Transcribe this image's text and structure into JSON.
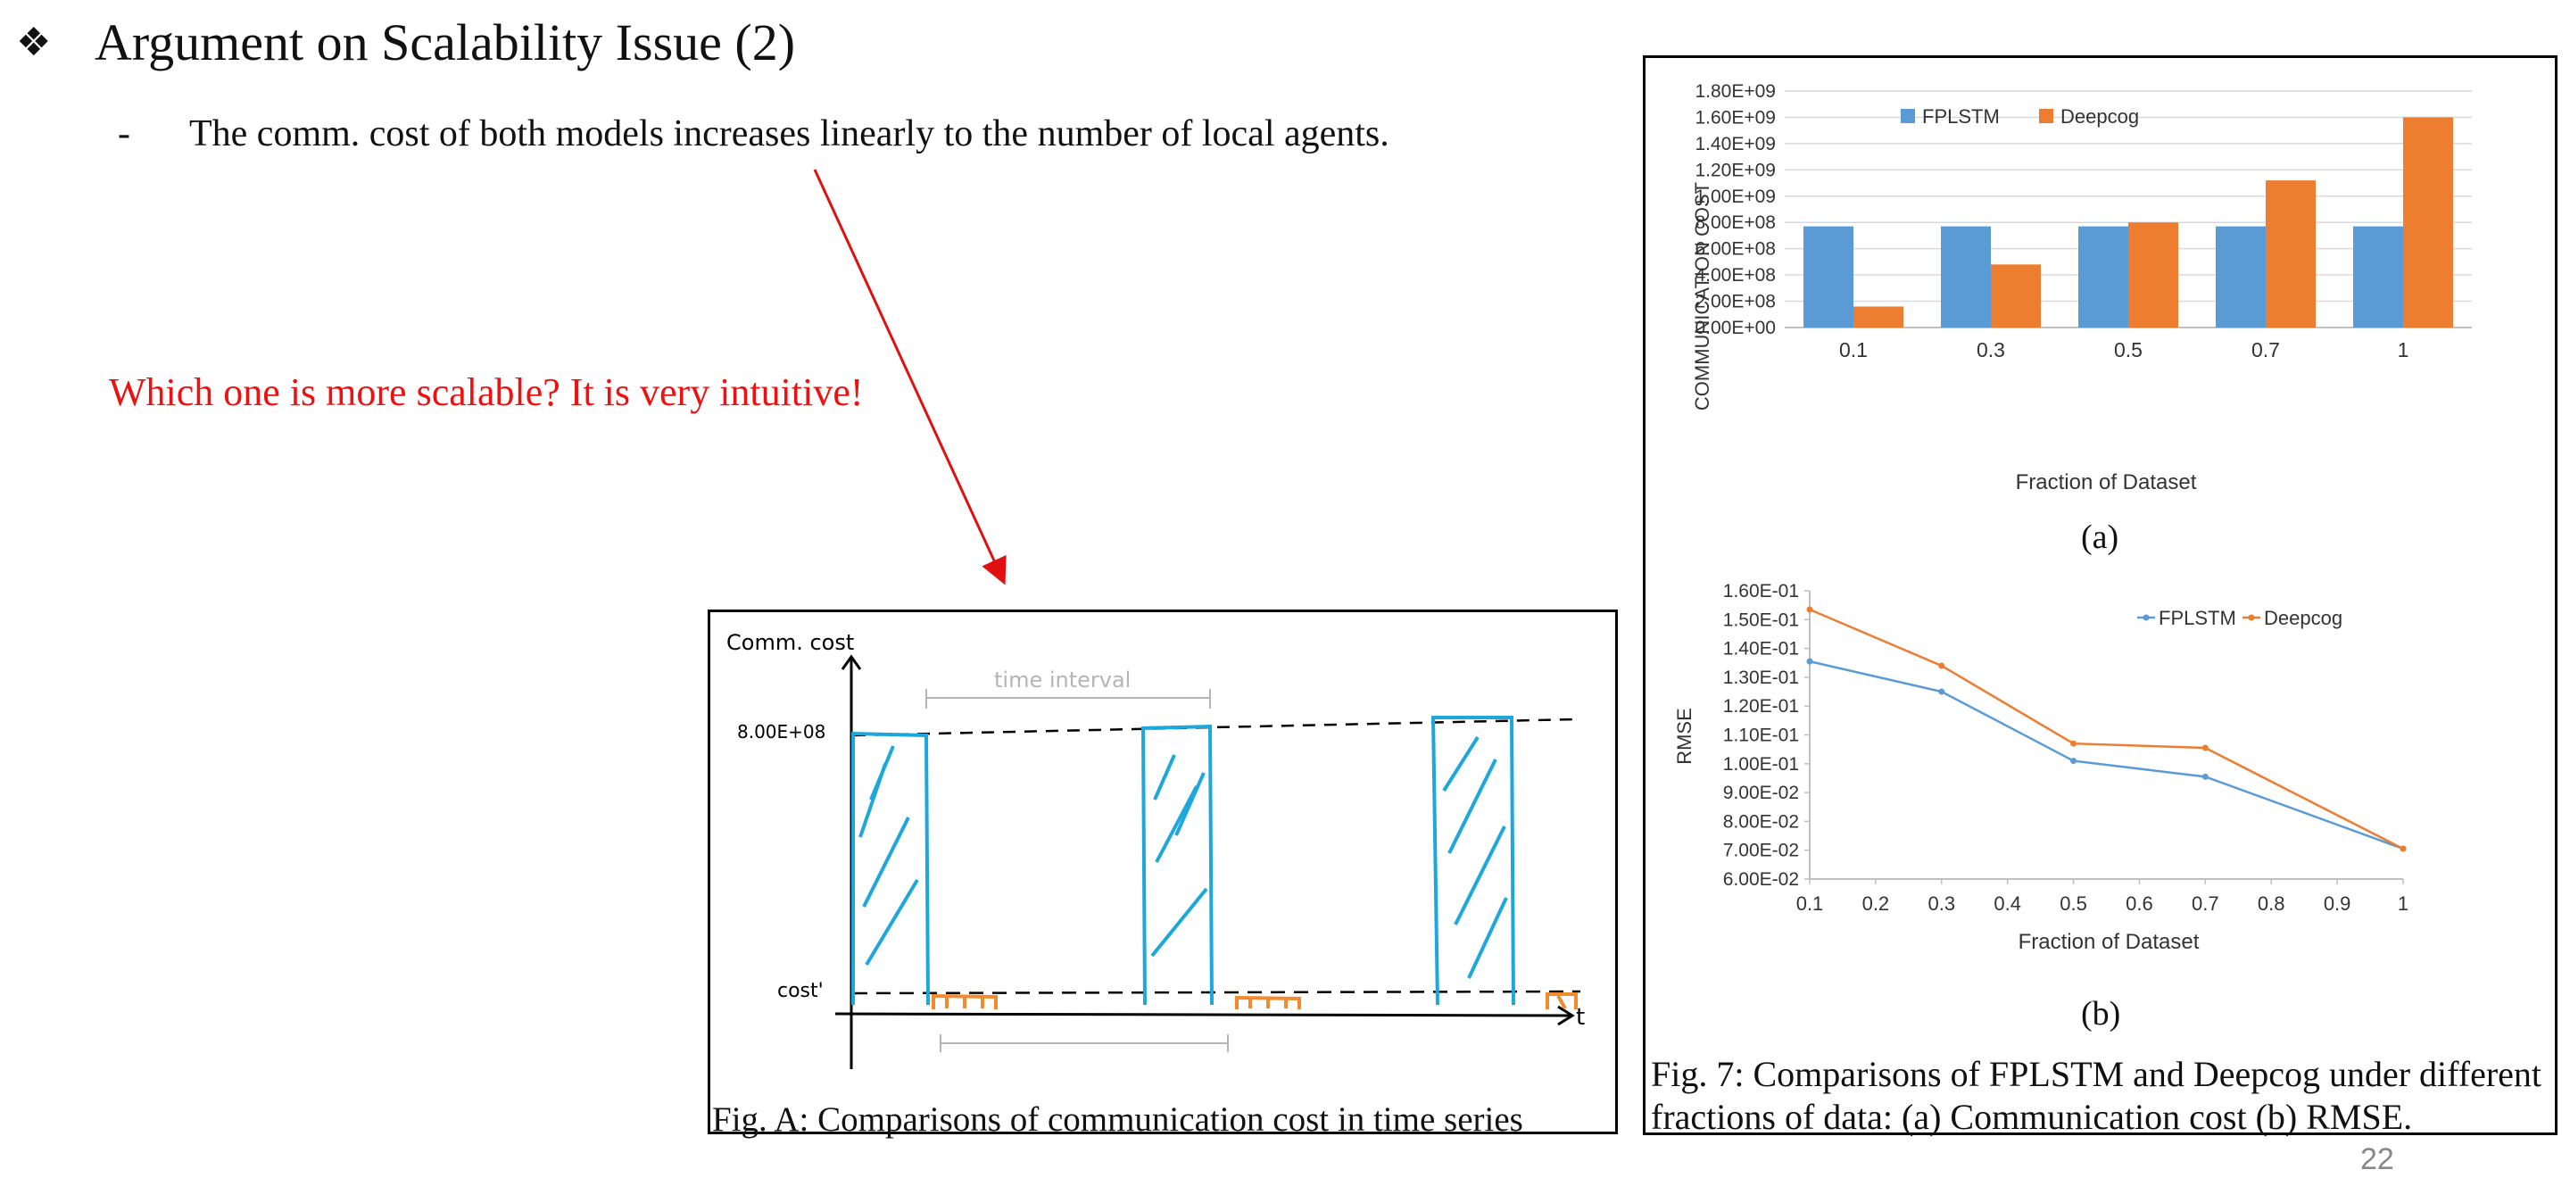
{
  "slide": {
    "bullet_icon": "❖",
    "title": "Argument on Scalability Issue (2)",
    "sub_dash": "-",
    "sub_bullet": "The comm. cost of both models increases linearly to the number of local agents.",
    "question": "Which one is more scalable? It is very intuitive!",
    "page_number": "22"
  },
  "sketch": {
    "y_axis_label": "Comm. cost",
    "high_tick": "8.00E+08",
    "low_tick": "cost'",
    "x_axis_label": "t",
    "interval_label": "time interval",
    "caption": "Fig. A: Comparisons of communication cost in time series",
    "colors": {
      "high_bars": "#1ca7dd",
      "low_bars": "#f28a2e",
      "annotation": "#b5b5b5"
    }
  },
  "figure": {
    "label_a": "(a)",
    "label_b": "(b)",
    "caption": "Fig. 7: Comparisons of FPLSTM and Deepcog under different fractions of data: (a) Communication cost (b) RMSE."
  },
  "chart_data": [
    {
      "type": "bar",
      "categories": [
        "0.1",
        "0.3",
        "0.5",
        "0.7",
        "1"
      ],
      "series": [
        {
          "name": "FPLSTM",
          "values": [
            770000000.0,
            770000000.0,
            770000000.0,
            770000000.0,
            770000000.0
          ],
          "color": "#5b9bd5"
        },
        {
          "name": "Deepcog",
          "values": [
            160000000.0,
            480000000.0,
            800000000.0,
            1120000000.0,
            1600000000.0
          ],
          "color": "#ed7d31"
        }
      ],
      "ylabel": "COMMUNICATION COST",
      "xlabel": "Fraction of Dataset",
      "ylim": [
        0,
        1800000000.0
      ],
      "yticks": [
        "0.00E+00",
        "2.00E+08",
        "4.00E+08",
        "6.00E+08",
        "8.00E+08",
        "1.00E+09",
        "1.20E+09",
        "1.40E+09",
        "1.60E+09",
        "1.80E+09"
      ],
      "grid": true,
      "legend": "top-left"
    },
    {
      "type": "line",
      "x": [
        0.1,
        0.3,
        0.5,
        0.7,
        1
      ],
      "series": [
        {
          "name": "FPLSTM",
          "values": [
            0.1355,
            0.125,
            0.101,
            0.0955,
            0.0705
          ],
          "color": "#5b9bd5"
        },
        {
          "name": "Deepcog",
          "values": [
            0.1535,
            0.134,
            0.107,
            0.1055,
            0.0705
          ],
          "color": "#ed7d31"
        }
      ],
      "ylabel": "RMSE",
      "xlabel": "Fraction of Dataset",
      "xlim": [
        0.1,
        1
      ],
      "ylim": [
        0.06,
        0.16
      ],
      "xticks": [
        "0.1",
        "0.2",
        "0.3",
        "0.4",
        "0.5",
        "0.6",
        "0.7",
        "0.8",
        "0.9",
        "1"
      ],
      "yticks": [
        "6.00E-02",
        "7.00E-02",
        "8.00E-02",
        "9.00E-02",
        "1.00E-01",
        "1.10E-01",
        "1.20E-01",
        "1.30E-01",
        "1.40E-01",
        "1.50E-01",
        "1.60E-01"
      ],
      "grid": false,
      "legend": "top-right"
    }
  ]
}
